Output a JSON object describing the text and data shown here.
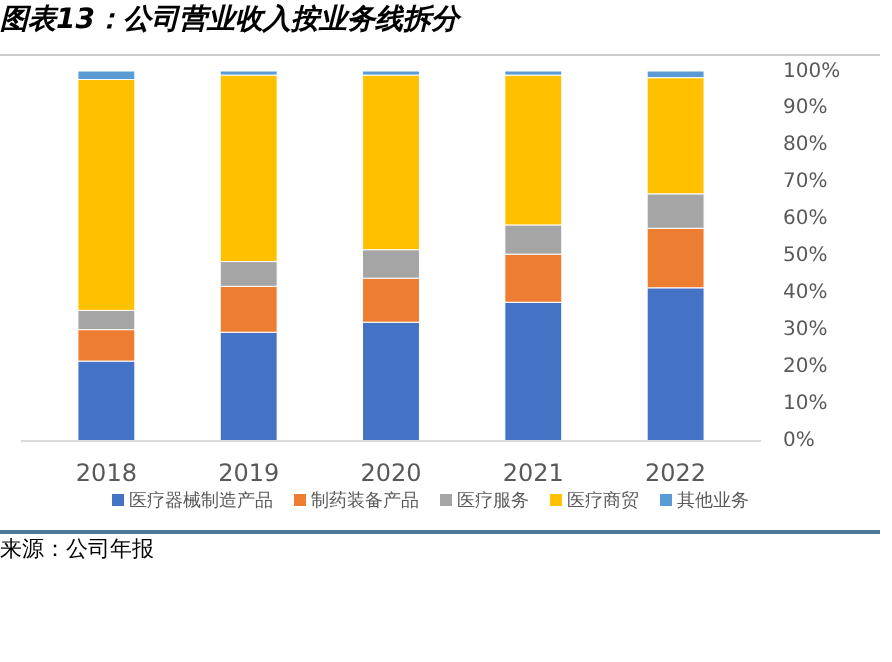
{
  "chart_data": {
    "type": "bar",
    "stacked": true,
    "title": "图表13：公司营业收入按业务线拆分",
    "categories": [
      "2018",
      "2019",
      "2020",
      "2021",
      "2022"
    ],
    "series": [
      {
        "name": "医疗器械制造产品",
        "color": "#4472c4",
        "values": [
          21.6,
          29.4,
          32.1,
          37.5,
          41.4
        ]
      },
      {
        "name": "制药装备产品",
        "color": "#ed7d31",
        "values": [
          8.5,
          12.4,
          11.9,
          13.0,
          16.1
        ]
      },
      {
        "name": "医疗服务",
        "color": "#a5a5a5",
        "values": [
          5.2,
          6.7,
          7.7,
          7.9,
          9.3
        ]
      },
      {
        "name": "医疗商贸",
        "color": "#ffc000",
        "values": [
          62.4,
          50.4,
          47.2,
          40.5,
          31.4
        ]
      },
      {
        "name": "其他业务",
        "color": "#5b9bd5",
        "values": [
          2.3,
          1.1,
          1.1,
          1.1,
          1.8
        ]
      }
    ],
    "ylim": [
      0,
      100
    ],
    "yticks": [
      {
        "value": 0,
        "label": "0%"
      },
      {
        "value": 10,
        "label": "10%"
      },
      {
        "value": 20,
        "label": "20%"
      },
      {
        "value": 30,
        "label": "30%"
      },
      {
        "value": 40,
        "label": "40%"
      },
      {
        "value": 50,
        "label": "50%"
      },
      {
        "value": 60,
        "label": "60%"
      },
      {
        "value": 70,
        "label": "70%"
      },
      {
        "value": 80,
        "label": "80%"
      },
      {
        "value": 90,
        "label": "90%"
      },
      {
        "value": 100,
        "label": "100%"
      }
    ],
    "grid": false,
    "legend": "bottom",
    "annotations": [
      "来源：公司年报"
    ]
  }
}
